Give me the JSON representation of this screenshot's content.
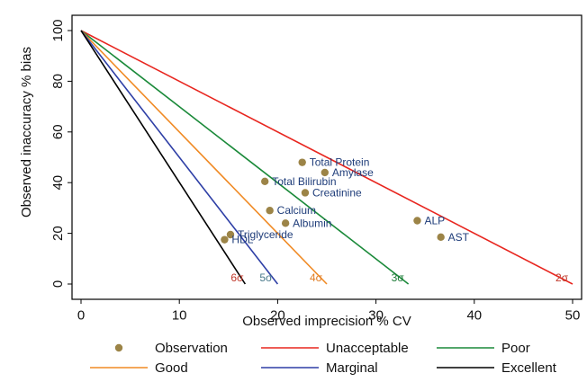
{
  "chart_data": {
    "type": "line",
    "title": "",
    "xlabel": "Observed imprecision % CV",
    "ylabel": "Observed inaccuracy % bias",
    "xlim": [
      0,
      50
    ],
    "ylim": [
      0,
      100
    ],
    "xticks": [
      0,
      10,
      20,
      30,
      40,
      50
    ],
    "yticks": [
      0,
      20,
      40,
      60,
      80,
      100
    ],
    "grid": false,
    "legend_position": "bottom",
    "series": [
      {
        "name": "Unacceptable",
        "type": "line",
        "color": "#e8261f",
        "x": [
          0,
          50
        ],
        "y": [
          100,
          0
        ],
        "sigma_label": "2σ"
      },
      {
        "name": "Poor",
        "type": "line",
        "color": "#1b8a3a",
        "x": [
          0,
          33.3
        ],
        "y": [
          100,
          0
        ],
        "sigma_label": "3σ"
      },
      {
        "name": "Good",
        "type": "line",
        "color": "#f08a24",
        "x": [
          0,
          25
        ],
        "y": [
          100,
          0
        ],
        "sigma_label": "4σ"
      },
      {
        "name": "Marginal",
        "type": "line",
        "color": "#2e3fa6",
        "x": [
          0,
          20
        ],
        "y": [
          100,
          0
        ],
        "sigma_label": "5σ"
      },
      {
        "name": "Excellent",
        "type": "line",
        "color": "#000000",
        "x": [
          0,
          16.7
        ],
        "y": [
          100,
          0
        ],
        "sigma_label": "6σ"
      }
    ],
    "sigma_label_colors": {
      "2σ": "#c0392b",
      "3σ": "#1b7a36",
      "4σ": "#e07b20",
      "5σ": "#4a7a8c",
      "6σ": "#c0392b"
    },
    "observation_color": "#9c8447",
    "observations_legend": "Observation",
    "observations": [
      {
        "label": "Total Protein",
        "x": 22.5,
        "y": 48
      },
      {
        "label": "Amylase",
        "x": 24.8,
        "y": 44
      },
      {
        "label": "Total Bilirubin",
        "x": 18.7,
        "y": 40.5
      },
      {
        "label": "Creatinine",
        "x": 22.8,
        "y": 36
      },
      {
        "label": "Calcium",
        "x": 19.2,
        "y": 29
      },
      {
        "label": "Albumin",
        "x": 20.8,
        "y": 24
      },
      {
        "label": "ALP",
        "x": 34.2,
        "y": 25
      },
      {
        "label": "AST",
        "x": 36.6,
        "y": 18.5
      },
      {
        "label": "Triglyceride",
        "x": 15.2,
        "y": 19.5
      },
      {
        "label": "HDL",
        "x": 14.6,
        "y": 17.5
      }
    ],
    "legend": [
      {
        "name": "Observation",
        "kind": "marker"
      },
      {
        "name": "Unacceptable",
        "kind": "line"
      },
      {
        "name": "Poor",
        "kind": "line"
      },
      {
        "name": "Good",
        "kind": "line"
      },
      {
        "name": "Marginal",
        "kind": "line"
      },
      {
        "name": "Excellent",
        "kind": "line"
      }
    ]
  }
}
